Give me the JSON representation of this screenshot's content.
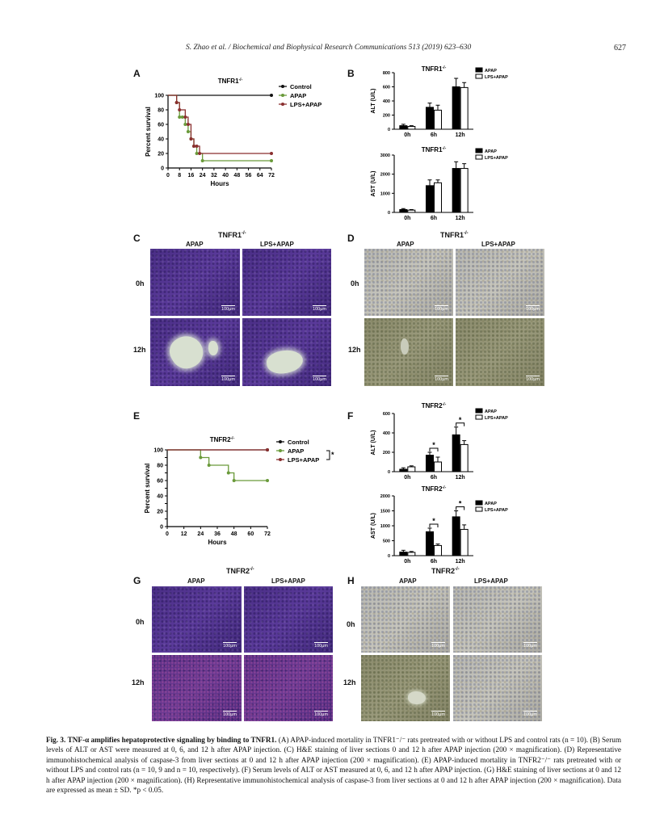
{
  "header": {
    "running_title": "S. Zhao et al. / Biochemical and Biophysical Research Communications 513 (2019) 623–630",
    "page_number": "627"
  },
  "panels": {
    "A": "A",
    "B": "B",
    "C": "C",
    "D": "D",
    "E": "E",
    "F": "F",
    "G": "G",
    "H": "H"
  },
  "tnfr1": "TNFR1",
  "tnfr2": "TNFR2",
  "ko": "-/-",
  "labels": {
    "apap": "APAP",
    "lps_apap": "LPS+APAP",
    "control": "Control",
    "t0": "0h",
    "t12": "12h",
    "scale": "100μm"
  },
  "chart_data": [
    {
      "panel": "A",
      "type": "line",
      "title": "TNFR1-/-",
      "xlabel": "Hours",
      "ylabel": "Percent survival",
      "xticks": [
        0,
        8,
        16,
        24,
        32,
        40,
        48,
        56,
        64,
        72
      ],
      "yticks": [
        0,
        20,
        40,
        60,
        80,
        100
      ],
      "xlim": [
        0,
        72
      ],
      "ylim": [
        0,
        100
      ],
      "series": [
        {
          "name": "Control",
          "color": "#111111",
          "steps": [
            [
              0,
              100
            ],
            [
              72,
              100
            ]
          ]
        },
        {
          "name": "APAP",
          "color": "#6a9a3a",
          "steps": [
            [
              0,
              100
            ],
            [
              6,
              90
            ],
            [
              8,
              70
            ],
            [
              10,
              70
            ],
            [
              12,
              60
            ],
            [
              14,
              50
            ],
            [
              16,
              40
            ],
            [
              18,
              30
            ],
            [
              20,
              20
            ],
            [
              24,
              10
            ],
            [
              72,
              10
            ]
          ]
        },
        {
          "name": "LPS+APAP",
          "color": "#8a2f2f",
          "steps": [
            [
              0,
              100
            ],
            [
              6,
              90
            ],
            [
              8,
              80
            ],
            [
              12,
              70
            ],
            [
              14,
              60
            ],
            [
              16,
              40
            ],
            [
              18,
              30
            ],
            [
              20,
              30
            ],
            [
              22,
              20
            ],
            [
              72,
              20
            ]
          ]
        }
      ]
    },
    {
      "panel": "B1",
      "type": "bar",
      "title": "TNFR1-/-",
      "ylabel": "ALT (U/L)",
      "categories": [
        "0h",
        "6h",
        "12h"
      ],
      "yticks": [
        0,
        200,
        400,
        600,
        800
      ],
      "ylim": [
        0,
        800
      ],
      "series": [
        {
          "name": "APAP",
          "values": [
            50,
            310,
            600
          ],
          "errors": [
            20,
            60,
            120
          ]
        },
        {
          "name": "LPS+APAP",
          "values": [
            40,
            270,
            590
          ],
          "errors": [
            10,
            70,
            70
          ]
        }
      ]
    },
    {
      "panel": "B2",
      "type": "bar",
      "title": "TNFR1-/-",
      "ylabel": "AST (U/L)",
      "categories": [
        "0h",
        "6h",
        "12h"
      ],
      "yticks": [
        0,
        1000,
        2000,
        3000
      ],
      "ylim": [
        0,
        3000
      ],
      "series": [
        {
          "name": "APAP",
          "values": [
            150,
            1400,
            2300
          ],
          "errors": [
            50,
            300,
            350
          ]
        },
        {
          "name": "LPS+APAP",
          "values": [
            120,
            1550,
            2300
          ],
          "errors": [
            30,
            150,
            250
          ]
        }
      ]
    },
    {
      "panel": "E",
      "type": "line",
      "title": "TNFR2-/-",
      "xlabel": "Hours",
      "ylabel": "Percent survival",
      "xticks": [
        0,
        12,
        24,
        36,
        48,
        60,
        72
      ],
      "yticks": [
        0,
        10,
        20,
        30,
        40,
        50,
        60,
        70,
        80,
        90,
        100
      ],
      "xlim": [
        0,
        72
      ],
      "ylim": [
        0,
        100
      ],
      "annotation": "*",
      "series": [
        {
          "name": "Control",
          "color": "#111111",
          "steps": [
            [
              0,
              100
            ],
            [
              72,
              100
            ]
          ]
        },
        {
          "name": "APAP",
          "color": "#6a9a3a",
          "steps": [
            [
              0,
              100
            ],
            [
              24,
              90
            ],
            [
              30,
              80
            ],
            [
              44,
              70
            ],
            [
              48,
              60
            ],
            [
              72,
              60
            ]
          ]
        },
        {
          "name": "LPS+APAP",
          "color": "#8a2f2f",
          "steps": [
            [
              0,
              100
            ],
            [
              72,
              100
            ]
          ]
        }
      ]
    },
    {
      "panel": "F1",
      "type": "bar",
      "title": "TNFR2-/-",
      "ylabel": "ALT (U/L)",
      "categories": [
        "0h",
        "6h",
        "12h"
      ],
      "yticks": [
        0,
        200,
        400,
        600
      ],
      "ylim": [
        0,
        600
      ],
      "significance": [
        "6h",
        "12h"
      ],
      "series": [
        {
          "name": "APAP",
          "values": [
            25,
            170,
            380
          ],
          "errors": [
            15,
            30,
            80
          ]
        },
        {
          "name": "LPS+APAP",
          "values": [
            50,
            100,
            280
          ],
          "errors": [
            10,
            50,
            40
          ]
        }
      ]
    },
    {
      "panel": "F2",
      "type": "bar",
      "title": "TNFR2-/-",
      "ylabel": "AST (U/L)",
      "categories": [
        "0h",
        "6h",
        "12h"
      ],
      "yticks": [
        0,
        500,
        1000,
        1500,
        2000
      ],
      "ylim": [
        0,
        2000
      ],
      "significance": [
        "6h",
        "12h"
      ],
      "series": [
        {
          "name": "APAP",
          "values": [
            120,
            800,
            1300
          ],
          "errors": [
            60,
            120,
            200
          ]
        },
        {
          "name": "LPS+APAP",
          "values": [
            110,
            340,
            880
          ],
          "errors": [
            30,
            50,
            150
          ]
        }
      ]
    }
  ],
  "caption": {
    "label": "Fig. 3.",
    "title": "TNF-α amplifies hepatoprotective signaling by binding to TNFR1.",
    "text": "(A) APAP-induced mortality in TNFR1⁻/⁻ rats pretreated with or without LPS and control rats (n = 10). (B) Serum levels of ALT or AST were measured at 0, 6, and 12 h after APAP injection. (C) H&E staining of liver sections 0 and 12 h after APAP injection (200 × magnification). (D) Representative immunohistochemical analysis of caspase-3 from liver sections at 0 and 12 h after APAP injection (200 × magnification). (E) APAP-induced mortality in TNFR2⁻/⁻ rats pretreated with or without LPS and control rats (n = 10, 9 and n = 10, respectively). (F) Serum levels of ALT or AST measured at 0, 6, and 12 h after APAP injection. (G) H&E staining of liver sections at 0 and 12 h after APAP injection (200 × magnification). (H) Representative immunohistochemical analysis of caspase-3 from liver sections at 0 and 12 h after APAP injection (200 × magnification). Data are expressed as mean ± SD. *p < 0.05."
  }
}
